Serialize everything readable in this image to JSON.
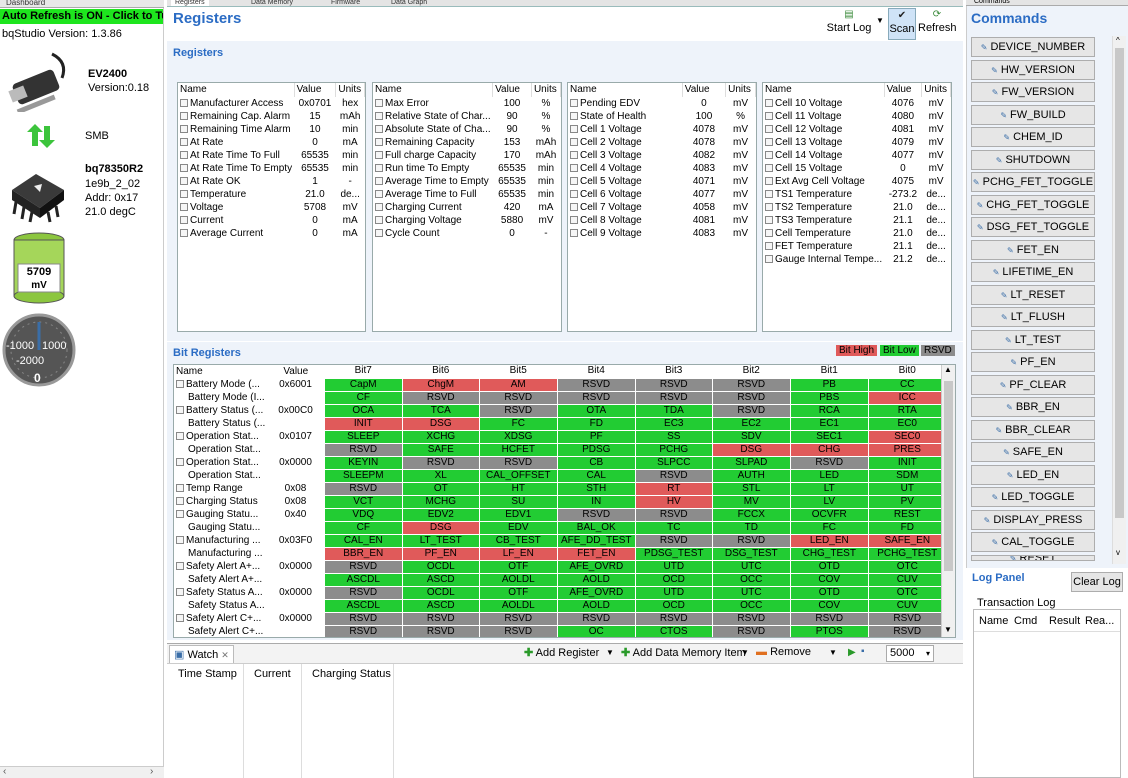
{
  "left": {
    "tab_label": "Dashboard",
    "auto_refresh": "Auto Refresh is ON - Click to Tu",
    "version": "bqStudio Version:  1.3.86",
    "ev_name": "EV2400",
    "ev_version": "Version:0.18",
    "bus": "SMB",
    "device_name": "bq78350R2",
    "device_fw": "1e9b_2_02",
    "device_addr": "Addr: 0x17",
    "device_temp": "21.0 degC",
    "battery_voltage": "5709",
    "battery_unit": "mV",
    "gauge_ticks": [
      "-1000",
      "1000",
      "-2000"
    ],
    "gauge_value": "0"
  },
  "tabs": [
    "Registers",
    "Data Memory",
    "Firmware",
    "Data Graph"
  ],
  "header": {
    "title": "Registers",
    "start_log": "Start Log",
    "scan": "Scan",
    "refresh": "Refresh"
  },
  "registers_section": {
    "title": "Registers",
    "col_name": "Name",
    "col_value": "Value",
    "col_units": "Units",
    "tables": [
      [
        [
          "Manufacturer Access",
          "0x0701",
          "hex"
        ],
        [
          "Remaining Cap. Alarm",
          "15",
          "mAh"
        ],
        [
          "Remaining Time Alarm",
          "10",
          "min"
        ],
        [
          "At Rate",
          "0",
          "mA"
        ],
        [
          "At Rate Time To Full",
          "65535",
          "min"
        ],
        [
          "At Rate Time To Empty",
          "65535",
          "min"
        ],
        [
          "At Rate OK",
          "1",
          "-"
        ],
        [
          "Temperature",
          "21.0",
          "de..."
        ],
        [
          "Voltage",
          "5708",
          "mV"
        ],
        [
          "Current",
          "0",
          "mA"
        ],
        [
          "Average Current",
          "0",
          "mA"
        ]
      ],
      [
        [
          "Max Error",
          "100",
          "%"
        ],
        [
          "Relative State of Char...",
          "90",
          "%"
        ],
        [
          "Absolute State of Cha...",
          "90",
          "%"
        ],
        [
          "Remaining Capacity",
          "153",
          "mAh"
        ],
        [
          "Full charge Capacity",
          "170",
          "mAh"
        ],
        [
          "Run time To Empty",
          "65535",
          "min"
        ],
        [
          "Average Time to Empty",
          "65535",
          "min"
        ],
        [
          "Average Time to Full",
          "65535",
          "min"
        ],
        [
          "Charging Current",
          "420",
          "mA"
        ],
        [
          "Charging Voltage",
          "5880",
          "mV"
        ],
        [
          "Cycle Count",
          "0",
          "-"
        ]
      ],
      [
        [
          "Pending EDV",
          "0",
          "mV"
        ],
        [
          "State of Health",
          "100",
          "%"
        ],
        [
          "Cell 1 Voltage",
          "4078",
          "mV"
        ],
        [
          "Cell 2 Voltage",
          "4078",
          "mV"
        ],
        [
          "Cell 3 Voltage",
          "4082",
          "mV"
        ],
        [
          "Cell 4 Voltage",
          "4083",
          "mV"
        ],
        [
          "Cell 5 Voltage",
          "4071",
          "mV"
        ],
        [
          "Cell 6 Voltage",
          "4077",
          "mV"
        ],
        [
          "Cell 7 Voltage",
          "4058",
          "mV"
        ],
        [
          "Cell 8 Voltage",
          "4081",
          "mV"
        ],
        [
          "Cell 9 Voltage",
          "4083",
          "mV"
        ]
      ],
      [
        [
          "Cell 10 Voltage",
          "4076",
          "mV"
        ],
        [
          "Cell 11 Voltage",
          "4080",
          "mV"
        ],
        [
          "Cell 12 Voltage",
          "4081",
          "mV"
        ],
        [
          "Cell 13 Voltage",
          "4079",
          "mV"
        ],
        [
          "Cell 14 Voltage",
          "4077",
          "mV"
        ],
        [
          "Cell 15 Voltage",
          "0",
          "mV"
        ],
        [
          "Ext Avg Cell Voltage",
          "4075",
          "mV"
        ],
        [
          "TS1 Temperature",
          "-273.2",
          "de..."
        ],
        [
          "TS2 Temperature",
          "21.0",
          "de..."
        ],
        [
          "TS3 Temperature",
          "21.1",
          "de..."
        ],
        [
          "Cell Temperature",
          "21.0",
          "de..."
        ],
        [
          "FET Temperature",
          "21.1",
          "de..."
        ],
        [
          "Gauge Internal Tempe...",
          "21.2",
          "de..."
        ]
      ]
    ]
  },
  "bit_section": {
    "title": "Bit Registers",
    "legend": [
      "Bit High",
      "Bit Low",
      "RSVD"
    ],
    "headers": [
      "Name",
      "Value",
      "Bit7",
      "Bit6",
      "Bit5",
      "Bit4",
      "Bit3",
      "Bit2",
      "Bit1",
      "Bit0"
    ],
    "rows": [
      {
        "name": "Battery Mode (...",
        "value": "0x6001",
        "bits": [
          [
            "CapM",
            "lo"
          ],
          [
            "ChgM",
            "hi"
          ],
          [
            "AM",
            "hi"
          ],
          [
            "RSVD",
            "rs"
          ],
          [
            "RSVD",
            "rs"
          ],
          [
            "RSVD",
            "rs"
          ],
          [
            "PB",
            "lo"
          ],
          [
            "CC",
            "lo"
          ]
        ]
      },
      {
        "name": "Battery Mode (I...",
        "value": "",
        "bits": [
          [
            "CF",
            "lo"
          ],
          [
            "RSVD",
            "rs"
          ],
          [
            "RSVD",
            "rs"
          ],
          [
            "RSVD",
            "rs"
          ],
          [
            "RSVD",
            "rs"
          ],
          [
            "RSVD",
            "rs"
          ],
          [
            "PBS",
            "lo"
          ],
          [
            "ICC",
            "hi"
          ]
        ]
      },
      {
        "name": "Battery Status (...",
        "value": "0x00C0",
        "bits": [
          [
            "OCA",
            "lo"
          ],
          [
            "TCA",
            "lo"
          ],
          [
            "RSVD",
            "rs"
          ],
          [
            "OTA",
            "lo"
          ],
          [
            "TDA",
            "lo"
          ],
          [
            "RSVD",
            "rs"
          ],
          [
            "RCA",
            "lo"
          ],
          [
            "RTA",
            "lo"
          ]
        ]
      },
      {
        "name": "Battery Status (...",
        "value": "",
        "bits": [
          [
            "INIT",
            "hi"
          ],
          [
            "DSG",
            "hi"
          ],
          [
            "FC",
            "lo"
          ],
          [
            "FD",
            "lo"
          ],
          [
            "EC3",
            "lo"
          ],
          [
            "EC2",
            "lo"
          ],
          [
            "EC1",
            "lo"
          ],
          [
            "EC0",
            "lo"
          ]
        ]
      },
      {
        "name": "Operation Stat...",
        "value": "0x0107",
        "bits": [
          [
            "SLEEP",
            "lo"
          ],
          [
            "XCHG",
            "lo"
          ],
          [
            "XDSG",
            "lo"
          ],
          [
            "PF",
            "lo"
          ],
          [
            "SS",
            "lo"
          ],
          [
            "SDV",
            "lo"
          ],
          [
            "SEC1",
            "lo"
          ],
          [
            "SEC0",
            "hi"
          ]
        ]
      },
      {
        "name": "Operation Stat...",
        "value": "",
        "bits": [
          [
            "RSVD",
            "rs"
          ],
          [
            "SAFE",
            "lo"
          ],
          [
            "HCFET",
            "lo"
          ],
          [
            "PDSG",
            "lo"
          ],
          [
            "PCHG",
            "lo"
          ],
          [
            "DSG",
            "hi"
          ],
          [
            "CHG",
            "hi"
          ],
          [
            "PRES",
            "hi"
          ]
        ]
      },
      {
        "name": "Operation Stat...",
        "value": "0x0000",
        "bits": [
          [
            "KEYIN",
            "lo"
          ],
          [
            "RSVD",
            "rs"
          ],
          [
            "RSVD",
            "rs"
          ],
          [
            "CB",
            "lo"
          ],
          [
            "SLPCC",
            "lo"
          ],
          [
            "SLPAD",
            "lo"
          ],
          [
            "RSVD",
            "rs"
          ],
          [
            "INIT",
            "lo"
          ]
        ]
      },
      {
        "name": "Operation Stat...",
        "value": "",
        "bits": [
          [
            "SLEEPM",
            "lo"
          ],
          [
            "XL",
            "lo"
          ],
          [
            "CAL_OFFSET",
            "lo"
          ],
          [
            "CAL",
            "lo"
          ],
          [
            "RSVD",
            "rs"
          ],
          [
            "AUTH",
            "lo"
          ],
          [
            "LED",
            "lo"
          ],
          [
            "SDM",
            "lo"
          ]
        ]
      },
      {
        "name": "Temp Range",
        "value": "0x08",
        "bits": [
          [
            "RSVD",
            "rs"
          ],
          [
            "OT",
            "lo"
          ],
          [
            "HT",
            "lo"
          ],
          [
            "STH",
            "lo"
          ],
          [
            "RT",
            "hi"
          ],
          [
            "STL",
            "lo"
          ],
          [
            "LT",
            "lo"
          ],
          [
            "UT",
            "lo"
          ]
        ]
      },
      {
        "name": "Charging Status",
        "value": "0x08",
        "bits": [
          [
            "VCT",
            "lo"
          ],
          [
            "MCHG",
            "lo"
          ],
          [
            "SU",
            "lo"
          ],
          [
            "IN",
            "lo"
          ],
          [
            "HV",
            "hi"
          ],
          [
            "MV",
            "lo"
          ],
          [
            "LV",
            "lo"
          ],
          [
            "PV",
            "lo"
          ]
        ]
      },
      {
        "name": "Gauging Statu...",
        "value": "0x40",
        "bits": [
          [
            "VDQ",
            "lo"
          ],
          [
            "EDV2",
            "lo"
          ],
          [
            "EDV1",
            "lo"
          ],
          [
            "RSVD",
            "rs"
          ],
          [
            "RSVD",
            "rs"
          ],
          [
            "FCCX",
            "lo"
          ],
          [
            "OCVFR",
            "lo"
          ],
          [
            "REST",
            "lo"
          ]
        ]
      },
      {
        "name": "Gauging Statu...",
        "value": "",
        "bits": [
          [
            "CF",
            "lo"
          ],
          [
            "DSG",
            "hi"
          ],
          [
            "EDV",
            "lo"
          ],
          [
            "BAL_OK",
            "lo"
          ],
          [
            "TC",
            "lo"
          ],
          [
            "TD",
            "lo"
          ],
          [
            "FC",
            "lo"
          ],
          [
            "FD",
            "lo"
          ]
        ]
      },
      {
        "name": "Manufacturing ...",
        "value": "0x03F0",
        "bits": [
          [
            "CAL_EN",
            "lo"
          ],
          [
            "LT_TEST",
            "lo"
          ],
          [
            "CB_TEST",
            "lo"
          ],
          [
            "AFE_DD_TEST",
            "lo"
          ],
          [
            "RSVD",
            "rs"
          ],
          [
            "RSVD",
            "rs"
          ],
          [
            "LED_EN",
            "hi"
          ],
          [
            "SAFE_EN",
            "hi"
          ]
        ]
      },
      {
        "name": "Manufacturing ...",
        "value": "",
        "bits": [
          [
            "BBR_EN",
            "hi"
          ],
          [
            "PF_EN",
            "hi"
          ],
          [
            "LF_EN",
            "hi"
          ],
          [
            "FET_EN",
            "hi"
          ],
          [
            "PDSG_TEST",
            "lo"
          ],
          [
            "DSG_TEST",
            "lo"
          ],
          [
            "CHG_TEST",
            "lo"
          ],
          [
            "PCHG_TEST",
            "lo"
          ]
        ]
      },
      {
        "name": "Safety Alert A+...",
        "value": "0x0000",
        "bits": [
          [
            "RSVD",
            "rs"
          ],
          [
            "OCDL",
            "lo"
          ],
          [
            "OTF",
            "lo"
          ],
          [
            "AFE_OVRD",
            "lo"
          ],
          [
            "UTD",
            "lo"
          ],
          [
            "UTC",
            "lo"
          ],
          [
            "OTD",
            "lo"
          ],
          [
            "OTC",
            "lo"
          ]
        ]
      },
      {
        "name": "Safety Alert A+...",
        "value": "",
        "bits": [
          [
            "ASCDL",
            "lo"
          ],
          [
            "ASCD",
            "lo"
          ],
          [
            "AOLDL",
            "lo"
          ],
          [
            "AOLD",
            "lo"
          ],
          [
            "OCD",
            "lo"
          ],
          [
            "OCC",
            "lo"
          ],
          [
            "COV",
            "lo"
          ],
          [
            "CUV",
            "lo"
          ]
        ]
      },
      {
        "name": "Safety Status A...",
        "value": "0x0000",
        "bits": [
          [
            "RSVD",
            "rs"
          ],
          [
            "OCDL",
            "lo"
          ],
          [
            "OTF",
            "lo"
          ],
          [
            "AFE_OVRD",
            "lo"
          ],
          [
            "UTD",
            "lo"
          ],
          [
            "UTC",
            "lo"
          ],
          [
            "OTD",
            "lo"
          ],
          [
            "OTC",
            "lo"
          ]
        ]
      },
      {
        "name": "Safety Status A...",
        "value": "",
        "bits": [
          [
            "ASCDL",
            "lo"
          ],
          [
            "ASCD",
            "lo"
          ],
          [
            "AOLDL",
            "lo"
          ],
          [
            "AOLD",
            "lo"
          ],
          [
            "OCD",
            "lo"
          ],
          [
            "OCC",
            "lo"
          ],
          [
            "COV",
            "lo"
          ],
          [
            "CUV",
            "lo"
          ]
        ]
      },
      {
        "name": "Safety Alert C+...",
        "value": "0x0000",
        "bits": [
          [
            "RSVD",
            "rs"
          ],
          [
            "RSVD",
            "rs"
          ],
          [
            "RSVD",
            "rs"
          ],
          [
            "RSVD",
            "rs"
          ],
          [
            "RSVD",
            "rs"
          ],
          [
            "RSVD",
            "rs"
          ],
          [
            "RSVD",
            "rs"
          ],
          [
            "RSVD",
            "rs"
          ]
        ]
      },
      {
        "name": "Safety Alert C+...",
        "value": "",
        "bits": [
          [
            "RSVD",
            "rs"
          ],
          [
            "RSVD",
            "rs"
          ],
          [
            "RSVD",
            "rs"
          ],
          [
            "OC",
            "lo"
          ],
          [
            "CTOS",
            "lo"
          ],
          [
            "RSVD",
            "rs"
          ],
          [
            "PTOS",
            "lo"
          ],
          [
            "RSVD",
            "rs"
          ]
        ]
      }
    ]
  },
  "watch": {
    "tab": "Watch",
    "add_register": "Add Register",
    "add_data_memory": "Add Data Memory Item",
    "remove": "Remove",
    "interval": "5000",
    "columns": [
      "Time Stamp",
      "Current",
      "Charging Status"
    ]
  },
  "commands": {
    "tab": "Commands",
    "title": "Commands",
    "items": [
      "DEVICE_NUMBER",
      "HW_VERSION",
      "FW_VERSION",
      "FW_BUILD",
      "CHEM_ID",
      "SHUTDOWN",
      "PCHG_FET_TOGGLE",
      "CHG_FET_TOGGLE",
      "DSG_FET_TOGGLE",
      "FET_EN",
      "LIFETIME_EN",
      "LT_RESET",
      "LT_FLUSH",
      "LT_TEST",
      "PF_EN",
      "PF_CLEAR",
      "BBR_EN",
      "BBR_CLEAR",
      "SAFE_EN",
      "LED_EN",
      "LED_TOGGLE",
      "DISPLAY_PRESS",
      "CAL_TOGGLE",
      "RESET"
    ]
  },
  "log": {
    "title": "Log Panel",
    "clear": "Clear Log",
    "transaction": "Transaction Log",
    "columns": [
      "Name",
      "Cmd",
      "Result",
      "Rea..."
    ]
  }
}
